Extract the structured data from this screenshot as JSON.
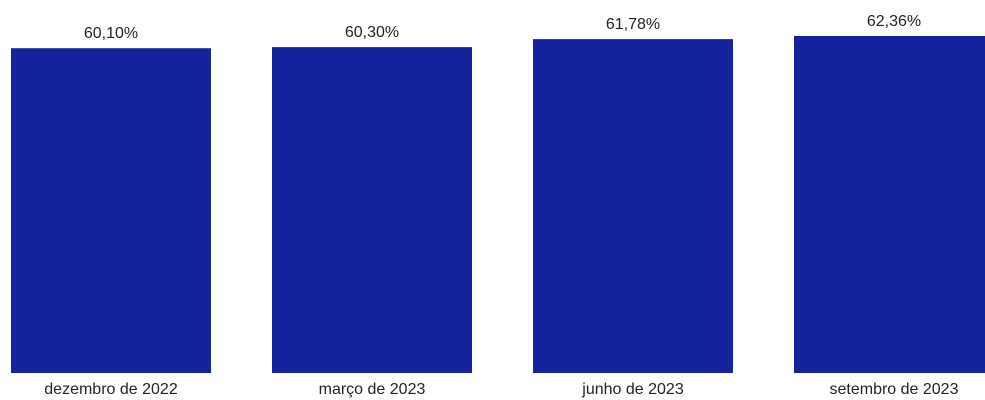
{
  "chart_data": {
    "type": "bar",
    "categories": [
      "dezembro de 2022",
      "março de 2023",
      "junho de 2023",
      "setembro de 2023"
    ],
    "values": [
      60.1,
      60.3,
      61.78,
      62.36
    ],
    "data_labels": [
      "60,10%",
      "60,30%",
      "61,78%",
      "62,36%"
    ],
    "title": "",
    "xlabel": "",
    "ylabel": "",
    "ylim": [
      0,
      62.36
    ],
    "grid": false,
    "legend": "none",
    "bar_color": "#14239B"
  }
}
